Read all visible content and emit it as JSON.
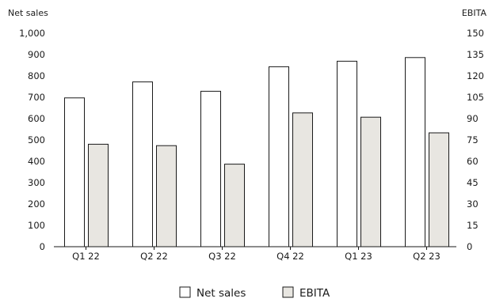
{
  "chart_data": {
    "type": "bar",
    "categories": [
      "Q1 22",
      "Q2 22",
      "Q3 22",
      "Q4 22",
      "Q1 23",
      "Q2 23"
    ],
    "series": [
      {
        "name": "Net sales",
        "axis": "left",
        "values": [
          697,
          772,
          728,
          843,
          869,
          886
        ],
        "color": "#ffffff"
      },
      {
        "name": "EBITA",
        "axis": "right",
        "values": [
          72,
          71,
          58,
          94,
          91,
          80
        ],
        "color": "#e8e6e1"
      }
    ],
    "ylabel_left": "Net sales",
    "ylabel_right": "EBITA",
    "ylim_left": [
      0,
      1000
    ],
    "ylim_right": [
      0,
      150
    ],
    "yticks_left": [
      "0",
      "100",
      "200",
      "300",
      "400",
      "500",
      "600",
      "700",
      "800",
      "900",
      "1,000"
    ],
    "yticks_right": [
      "0",
      "15",
      "30",
      "45",
      "60",
      "75",
      "90",
      "105",
      "120",
      "135",
      "150"
    ],
    "grid": false,
    "legend_position": "bottom-center",
    "bar_outline_color": "#1a1a1a"
  }
}
